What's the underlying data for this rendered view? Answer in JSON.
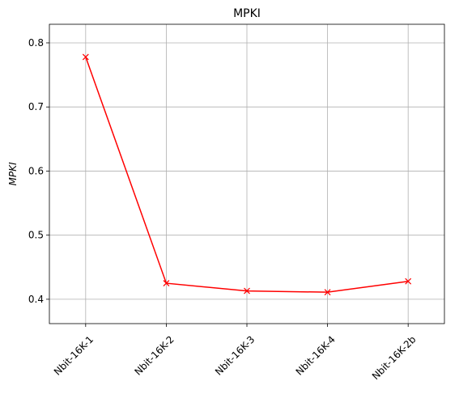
{
  "chart_data": {
    "type": "line",
    "title": "MPKI",
    "xlabel": "",
    "ylabel": "MPKI",
    "categories": [
      "Nbit-16K-1",
      "Nbit-16K-2",
      "Nbit-16K-3",
      "Nbit-16K-4",
      "Nbit-16K-2b"
    ],
    "series": [
      {
        "values": [
          0.778,
          0.425,
          0.413,
          0.411,
          0.428
        ],
        "color": "#ff0000",
        "marker": "x"
      }
    ],
    "ylim": [
      0.362,
      0.829
    ],
    "yticks": [
      0.4,
      0.5,
      0.6,
      0.7,
      0.8
    ],
    "ytick_labels": [
      "0.4",
      "0.5",
      "0.6",
      "0.7",
      "0.8"
    ],
    "grid": true,
    "legend": "none"
  }
}
